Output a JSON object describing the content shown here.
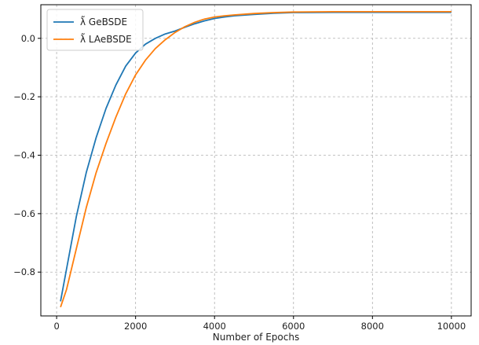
{
  "chart_data": {
    "type": "line",
    "title": "",
    "xlabel": "Number of Epochs",
    "ylabel": "",
    "xlim": [
      -400,
      10500
    ],
    "ylim": [
      -0.95,
      0.115
    ],
    "xticks": [
      0,
      2000,
      4000,
      6000,
      8000,
      10000
    ],
    "xtick_labels": [
      "0",
      "2000",
      "4000",
      "6000",
      "8000",
      "10000"
    ],
    "yticks": [
      -0.8,
      -0.6,
      -0.4,
      -0.2,
      0.0
    ],
    "ytick_labels": [
      "−0.8",
      "−0.6",
      "−0.4",
      "−0.2",
      "0.0"
    ],
    "grid": true,
    "legend_position": "top-left",
    "series": [
      {
        "name": "λ̃ GeBSDE",
        "color": "#1f77b4",
        "x": [
          100,
          250,
          500,
          750,
          1000,
          1250,
          1500,
          1750,
          2000,
          2250,
          2500,
          2750,
          3000,
          3250,
          3500,
          3750,
          4000,
          4250,
          4500,
          5000,
          5500,
          6000,
          7000,
          8000,
          9000,
          10000
        ],
        "y": [
          -0.9,
          -0.79,
          -0.61,
          -0.46,
          -0.34,
          -0.24,
          -0.16,
          -0.095,
          -0.05,
          -0.02,
          0.0,
          0.015,
          0.025,
          0.038,
          0.05,
          0.06,
          0.068,
          0.073,
          0.077,
          0.082,
          0.086,
          0.088,
          0.089,
          0.089,
          0.089,
          0.089
        ]
      },
      {
        "name": "λ̃ LAeBSDE",
        "color": "#ff7f0e",
        "x": [
          100,
          250,
          500,
          750,
          1000,
          1250,
          1500,
          1750,
          2000,
          2250,
          2500,
          2750,
          3000,
          3250,
          3500,
          3750,
          4000,
          4250,
          4500,
          5000,
          5500,
          6000,
          7000,
          8000,
          9000,
          10000
        ],
        "y": [
          -0.92,
          -0.86,
          -0.72,
          -0.58,
          -0.46,
          -0.36,
          -0.27,
          -0.19,
          -0.125,
          -0.075,
          -0.035,
          -0.005,
          0.02,
          0.04,
          0.055,
          0.066,
          0.073,
          0.077,
          0.08,
          0.085,
          0.088,
          0.09,
          0.091,
          0.091,
          0.091,
          0.091
        ]
      }
    ]
  }
}
